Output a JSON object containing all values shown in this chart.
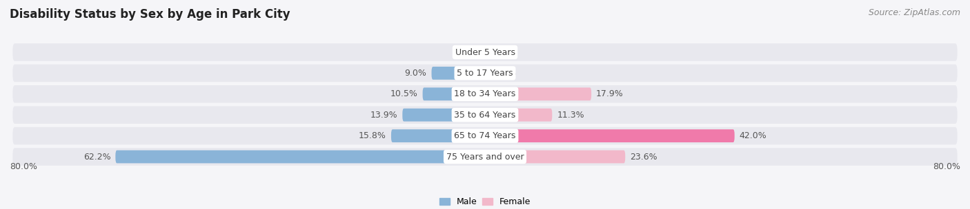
{
  "title": "Disability Status by Sex by Age in Park City",
  "source": "Source: ZipAtlas.com",
  "categories": [
    "Under 5 Years",
    "5 to 17 Years",
    "18 to 34 Years",
    "35 to 64 Years",
    "65 to 74 Years",
    "75 Years and over"
  ],
  "male_values": [
    0.0,
    9.0,
    10.5,
    13.9,
    15.8,
    62.2
  ],
  "female_values": [
    0.0,
    0.0,
    17.9,
    11.3,
    42.0,
    23.6
  ],
  "male_color": "#8ab4d8",
  "female_colors": [
    "#f2b8ca",
    "#f2b8ca",
    "#f2b8ca",
    "#f2b8ca",
    "#f07aaa",
    "#f2b8ca"
  ],
  "row_bg_color": "#e8e8ee",
  "axis_max": 80.0,
  "bar_height": 0.62,
  "title_fontsize": 12,
  "source_fontsize": 9,
  "label_fontsize": 9,
  "category_fontsize": 9,
  "tick_fontsize": 9
}
